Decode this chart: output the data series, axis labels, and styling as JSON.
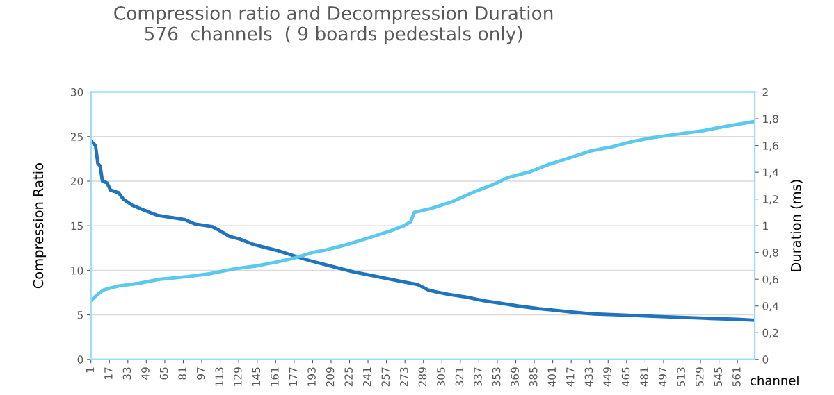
{
  "chart_data": {
    "type": "line",
    "title": "Compression ratio and Decompression Duration\n576  channels  ( 9 boards pedestals only)",
    "xlabel": "channel",
    "ylabel": "Compression Ratio",
    "y2label": "Duration (ms)",
    "xlim": [
      1,
      576
    ],
    "xticks": [
      1,
      17,
      33,
      49,
      65,
      81,
      97,
      113,
      129,
      145,
      161,
      177,
      193,
      209,
      225,
      241,
      257,
      273,
      289,
      305,
      321,
      337,
      353,
      369,
      385,
      401,
      417,
      433,
      449,
      465,
      481,
      497,
      513,
      529,
      545,
      561
    ],
    "ylim": [
      0,
      30
    ],
    "yticks": [
      0,
      5,
      10,
      15,
      20,
      25,
      30
    ],
    "y2lim": [
      0,
      2
    ],
    "y2ticks": [
      0,
      {
        "value": 0.2,
        "label": "0,2"
      },
      {
        "value": 0.4,
        "label": "0,4"
      },
      {
        "value": 0.6,
        "label": "0,6"
      },
      {
        "value": 0.8,
        "label": "0,8"
      },
      1,
      {
        "value": 1.2,
        "label": "1,2"
      },
      {
        "value": 1.4,
        "label": "1,4"
      },
      {
        "value": 1.6,
        "label": "1,6"
      },
      {
        "value": 1.8,
        "label": "1,8"
      },
      2
    ],
    "grid": "y",
    "legend": false,
    "marker": "none",
    "line_style": "solid",
    "series": [
      {
        "color": "#1f74bd",
        "x": [
          1,
          5,
          7,
          9,
          11,
          15,
          18,
          25,
          29,
          37,
          46,
          58,
          67,
          82,
          91,
          106,
          112,
          121,
          130,
          142,
          154,
          163,
          175,
          190,
          202,
          217,
          229,
          245,
          260,
          272,
          284,
          293,
          299,
          311,
          326,
          341,
          356,
          371,
          389,
          404,
          419,
          437,
          459,
          477,
          495,
          516,
          537,
          561,
          576
        ],
        "values": [
          24.5,
          24,
          22,
          21.7,
          20,
          19.8,
          19,
          18.7,
          18,
          17.3,
          16.8,
          16.2,
          16,
          15.7,
          15.2,
          14.9,
          14.5,
          13.8,
          13.5,
          12.9,
          12.5,
          12.2,
          11.7,
          11.1,
          10.7,
          10.2,
          9.8,
          9.4,
          9.0,
          8.7,
          8.4,
          7.8,
          7.6,
          7.3,
          7.0,
          6.6,
          6.3,
          6.0,
          5.7,
          5.5,
          5.3,
          5.1,
          5.0,
          4.9,
          4.8,
          4.7,
          4.6,
          4.5,
          4.4
        ]
      },
      {
        "color": "#5bc8ef",
        "axis": "y2",
        "x": [
          1,
          6,
          12,
          25,
          43,
          61,
          85,
          103,
          115,
          127,
          145,
          163,
          178,
          193,
          205,
          223,
          242,
          260,
          272,
          278,
          281,
          296,
          314,
          332,
          350,
          362,
          380,
          398,
          416,
          434,
          452,
          470,
          488,
          513,
          531,
          549,
          576
        ],
        "values": [
          0.44,
          0.48,
          0.52,
          0.55,
          0.57,
          0.6,
          0.62,
          0.64,
          0.66,
          0.68,
          0.7,
          0.73,
          0.76,
          0.8,
          0.82,
          0.86,
          0.91,
          0.96,
          1.0,
          1.03,
          1.1,
          1.13,
          1.18,
          1.25,
          1.31,
          1.36,
          1.4,
          1.46,
          1.51,
          1.56,
          1.59,
          1.63,
          1.66,
          1.69,
          1.71,
          1.74,
          1.78
        ]
      }
    ]
  }
}
